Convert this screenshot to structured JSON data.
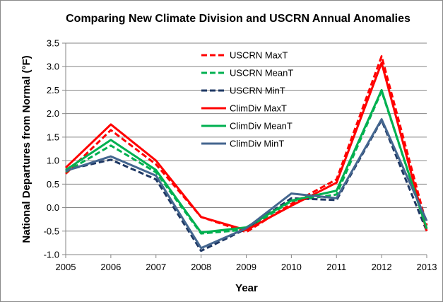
{
  "chart_data": {
    "type": "line",
    "title": "Comparing New Climate Division and USCRN Annual Anomalies",
    "xlabel": "Year",
    "ylabel": "National Departures from Normal (°F)",
    "x": [
      2005,
      2006,
      2007,
      2008,
      2009,
      2010,
      2011,
      2012,
      2013
    ],
    "x_tick_labels": [
      "2005",
      "2006",
      "2007",
      "2008",
      "2009",
      "2010",
      "2011",
      "2012",
      "2013"
    ],
    "ylim": [
      -1.0,
      3.5
    ],
    "y_ticks": [
      -1.0,
      -0.5,
      0.0,
      0.5,
      1.0,
      1.5,
      2.0,
      2.5,
      3.0,
      3.5
    ],
    "y_tick_labels": [
      "-1.0",
      "-0.5",
      "0.0",
      "0.5",
      "1.0",
      "1.5",
      "2.0",
      "2.5",
      "3.0",
      "3.5"
    ],
    "grid": "horizontal",
    "legend_position": "inside-top-center",
    "series": [
      {
        "name": "USCRN MaxT",
        "color": "#ff0000",
        "dashed": true,
        "values": [
          0.72,
          1.65,
          0.92,
          -0.2,
          -0.52,
          0.08,
          0.6,
          3.22,
          -0.38
        ]
      },
      {
        "name": "USCRN MeanT",
        "color": "#00b050",
        "dashed": true,
        "values": [
          0.76,
          1.32,
          0.75,
          -0.55,
          -0.47,
          0.14,
          0.28,
          2.48,
          -0.45
        ]
      },
      {
        "name": "USCRN MinT",
        "color": "#1f3864",
        "dashed": true,
        "values": [
          0.8,
          1.02,
          0.6,
          -0.92,
          -0.45,
          0.2,
          0.16,
          1.86,
          -0.5
        ]
      },
      {
        "name": "ClimDiv MaxT",
        "color": "#ff0000",
        "dashed": false,
        "values": [
          0.85,
          1.77,
          1.0,
          -0.2,
          -0.48,
          0.04,
          0.53,
          3.08,
          -0.5
        ]
      },
      {
        "name": "ClimDiv MeanT",
        "color": "#00b050",
        "dashed": false,
        "values": [
          0.8,
          1.44,
          0.8,
          -0.53,
          -0.42,
          0.15,
          0.36,
          2.5,
          -0.45
        ]
      },
      {
        "name": "ClimDiv MinT",
        "color": "#44668f",
        "dashed": false,
        "values": [
          0.78,
          1.09,
          0.68,
          -0.86,
          -0.44,
          0.3,
          0.2,
          1.88,
          -0.28
        ]
      }
    ]
  }
}
